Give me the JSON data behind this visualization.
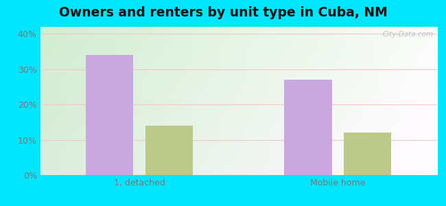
{
  "title": "Owners and renters by unit type in Cuba, NM",
  "categories": [
    "1, detached",
    "Mobile home"
  ],
  "owner_values": [
    34,
    27
  ],
  "renter_values": [
    14,
    12
  ],
  "owner_color": "#c9a8df",
  "renter_color": "#bdc98a",
  "bar_width": 0.12,
  "ylim": [
    0,
    42
  ],
  "yticks": [
    0,
    10,
    20,
    30,
    40
  ],
  "ytick_labels": [
    "0%",
    "10%",
    "20%",
    "30%",
    "40%"
  ],
  "outer_background": "#00e5ff",
  "plot_bg_color": "#e8f5e2",
  "title_fontsize": 13.5,
  "watermark": "City-Data.com",
  "grid_color": "#f0c8c8",
  "tick_color": "#777777",
  "x_positions": [
    0.25,
    0.75
  ]
}
